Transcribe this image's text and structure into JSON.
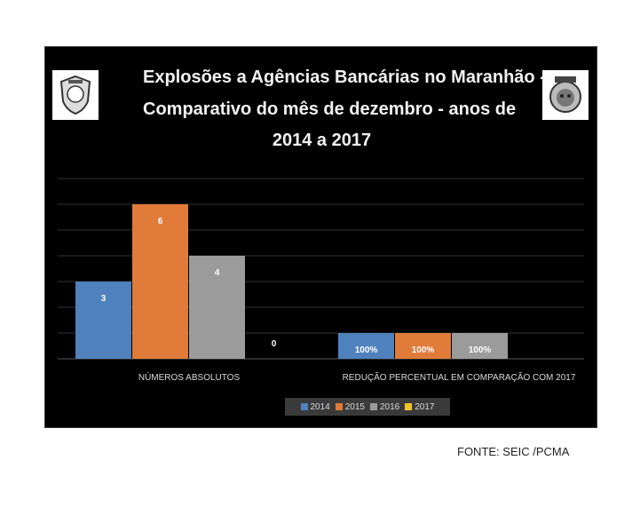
{
  "chart_data": {
    "type": "bar",
    "title_lines": [
      "Explosões a Agências Bancárias no Maranhão -",
      "Comparativo do mês de dezembro - anos de",
      "2014 a 2017"
    ],
    "categories": [
      "NÚMEROS ABSOLUTOS",
      "REDUÇÃO PERCENTUAL EM COMPARAÇÃO COM 2017"
    ],
    "category_scales": [
      {
        "category": "NÚMEROS ABSOLUTOS",
        "ylim": [
          0,
          7
        ]
      },
      {
        "category": "REDUÇÃO PERCENTUAL EM COMPARAÇÃO COM 2017",
        "ylim": [
          0,
          700
        ]
      }
    ],
    "series": [
      {
        "name": "2014",
        "color": "#4f81bd",
        "values": [
          3,
          100
        ],
        "labels": [
          "3",
          "100%"
        ]
      },
      {
        "name": "2015",
        "color": "#e07b39",
        "values": [
          6,
          100
        ],
        "labels": [
          "6",
          "100%"
        ]
      },
      {
        "name": "2016",
        "color": "#9b9b9b",
        "values": [
          4,
          100
        ],
        "labels": [
          "4",
          "100%"
        ]
      },
      {
        "name": "2017",
        "color": "#f2c12e",
        "values": [
          0,
          null
        ],
        "labels": [
          "0",
          ""
        ]
      }
    ],
    "gridlines": true,
    "legend_position": "bottom",
    "background": "#000000"
  },
  "logos": {
    "left": "police-badge-icon",
    "right": "seic-emblem-icon"
  },
  "source": "FONTE: SEIC /PCMA"
}
